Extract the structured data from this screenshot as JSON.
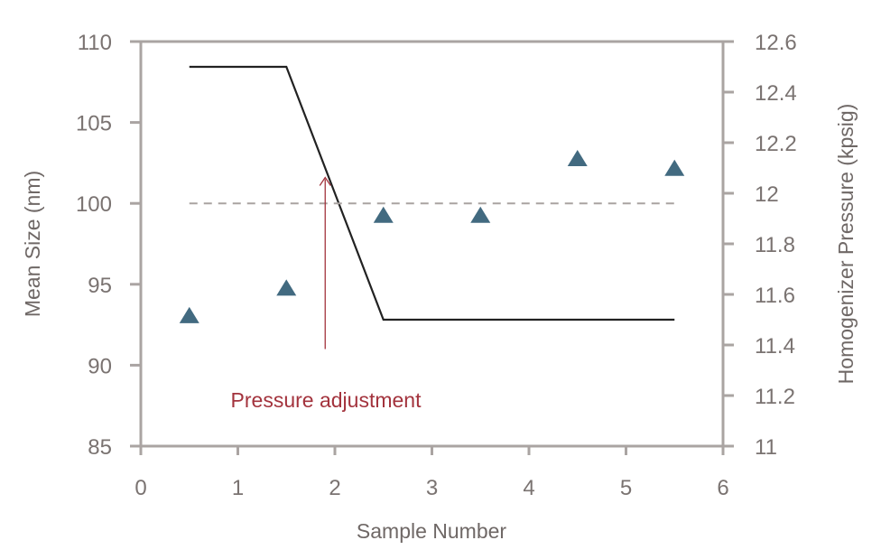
{
  "chart_data": {
    "type": "scatter",
    "title": "",
    "xlabel": "Sample Number",
    "ylabel": "Mean Size (nm)",
    "y2label": "Homogenizer Pressure (kpsig)",
    "xlim": [
      0,
      6
    ],
    "ylim": [
      85,
      110
    ],
    "y2lim": [
      11,
      12.6
    ],
    "x_ticks": [
      "0",
      "1",
      "2",
      "3",
      "4",
      "5",
      "6"
    ],
    "y_ticks": [
      "85",
      "90",
      "95",
      "100",
      "105",
      "110"
    ],
    "y2_ticks": [
      "11",
      "11.2",
      "11.4",
      "11.6",
      "11.8",
      "12",
      "12.2",
      "12.4",
      "12.6"
    ],
    "grid": false,
    "series": [
      {
        "kind": "scatter",
        "marker": "triangle",
        "axis": "left",
        "color": "#426a80",
        "x": [
          0.5,
          1.5,
          2.5,
          3.5,
          4.5,
          5.5
        ],
        "y": [
          93.0,
          94.7,
          99.2,
          99.2,
          102.7,
          102.1
        ]
      },
      {
        "kind": "line",
        "axis": "right",
        "color": "#222222",
        "x": [
          0.5,
          1.5,
          2.5,
          5.5
        ],
        "y": [
          12.5,
          12.5,
          11.5,
          11.5
        ]
      },
      {
        "kind": "reference-line",
        "axis": "left",
        "style": "dashed",
        "color": "#a9a3a1",
        "x": [
          0.5,
          5.5
        ],
        "y": [
          100,
          100
        ]
      }
    ],
    "annotations": [
      {
        "text": "Pressure adjustment",
        "x": 1.9,
        "y_from": 91,
        "y_to": 101.6,
        "color": "#a3333d"
      }
    ]
  }
}
